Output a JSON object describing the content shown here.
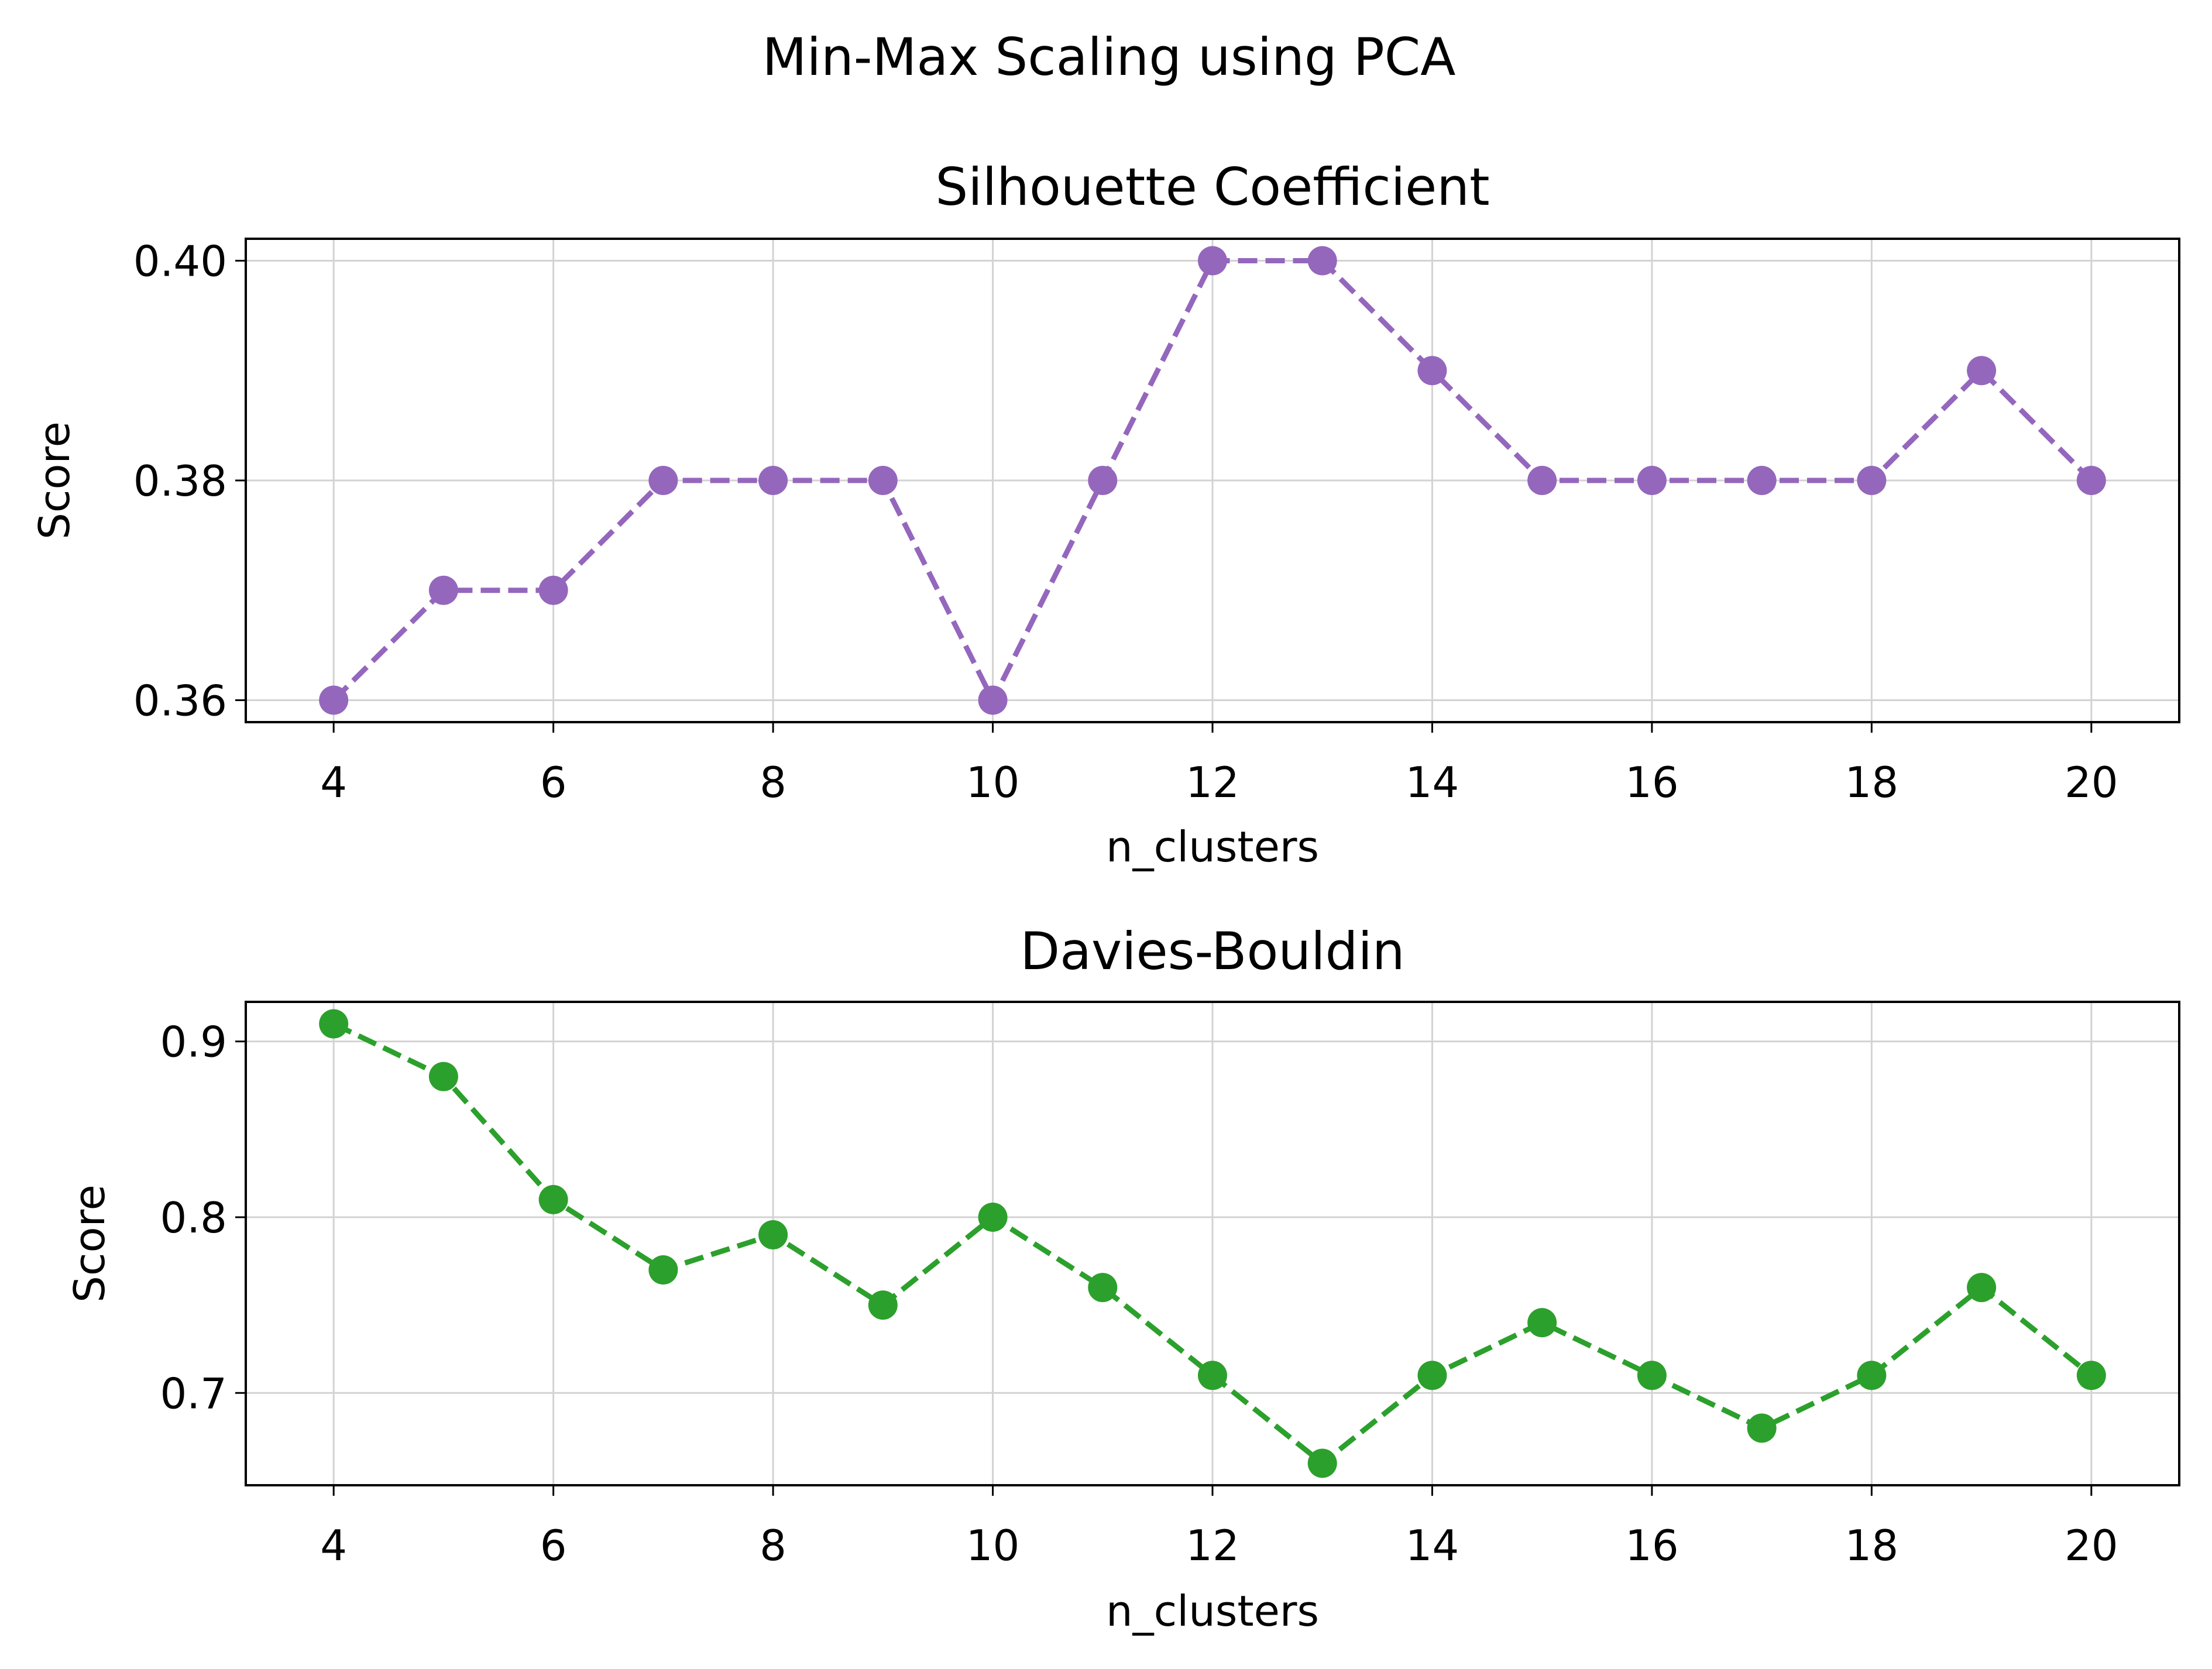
{
  "suptitle": "Min-Max Scaling using PCA",
  "chart_data": [
    {
      "type": "line",
      "title": "Silhouette Coefficient",
      "xlabel": "n_clusters",
      "ylabel": "Score",
      "x": [
        4,
        5,
        6,
        7,
        8,
        9,
        10,
        11,
        12,
        13,
        14,
        15,
        16,
        17,
        18,
        19,
        20
      ],
      "series": [
        {
          "values": [
            0.36,
            0.37,
            0.37,
            0.38,
            0.38,
            0.38,
            0.36,
            0.38,
            0.4,
            0.4,
            0.39,
            0.38,
            0.38,
            0.38,
            0.38,
            0.39,
            0.38
          ],
          "color": "#9467bd",
          "line_style": "dashed",
          "marker": "circle"
        }
      ],
      "xlim": [
        3.2,
        20.8
      ],
      "ylim": [
        0.358,
        0.402
      ],
      "xticks": [
        4,
        6,
        8,
        10,
        12,
        14,
        16,
        18,
        20
      ],
      "yticks": [
        0.36,
        0.38,
        0.4
      ],
      "ytick_labels": [
        "0.36",
        "0.38",
        "0.40"
      ],
      "grid": true
    },
    {
      "type": "line",
      "title": "Davies-Bouldin",
      "xlabel": "n_clusters",
      "ylabel": "Score",
      "x": [
        4,
        5,
        6,
        7,
        8,
        9,
        10,
        11,
        12,
        13,
        14,
        15,
        16,
        17,
        18,
        19,
        20
      ],
      "series": [
        {
          "values": [
            0.91,
            0.88,
            0.81,
            0.77,
            0.79,
            0.75,
            0.8,
            0.76,
            0.71,
            0.66,
            0.71,
            0.74,
            0.71,
            0.68,
            0.71,
            0.76,
            0.71
          ],
          "color": "#2ca02c",
          "line_style": "dashed",
          "marker": "circle"
        }
      ],
      "xlim": [
        3.2,
        20.8
      ],
      "ylim": [
        0.6475,
        0.9225
      ],
      "xticks": [
        4,
        6,
        8,
        10,
        12,
        14,
        16,
        18,
        20
      ],
      "yticks": [
        0.7,
        0.8,
        0.9
      ],
      "ytick_labels": [
        "0.7",
        "0.8",
        "0.9"
      ],
      "grid": true
    }
  ]
}
